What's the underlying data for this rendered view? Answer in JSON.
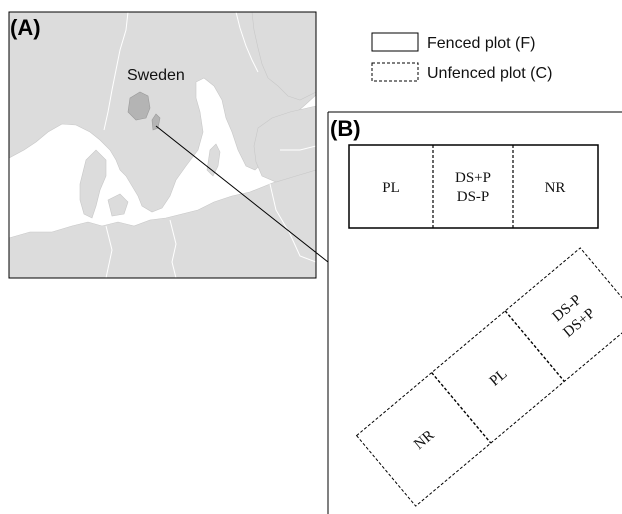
{
  "panel_a": {
    "label": "(A)",
    "country_label": "Sweden"
  },
  "legend": {
    "fenced": "Fenced plot (F)",
    "unfenced": "Unfenced plot (C)"
  },
  "panel_b": {
    "label": "(B)",
    "fenced_plot": {
      "left": "PL",
      "middle_top": "DS+P",
      "middle_bottom": "DS-P",
      "right": "NR"
    },
    "unfenced_plot": {
      "top_a": "DS-P",
      "top_b": "DS+P",
      "middle": "PL",
      "bottom": "NR"
    }
  },
  "colors": {
    "sea": "#ffffff",
    "land": "#dcdcdc",
    "highlight": "#b4b4b4",
    "line": "#000000"
  }
}
